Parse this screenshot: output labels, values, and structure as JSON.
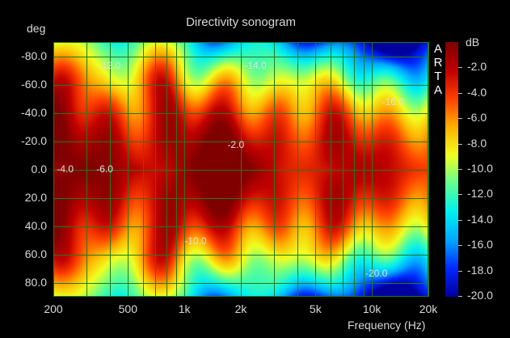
{
  "chart_data": {
    "type": "heatmap",
    "title": "Directivity sonogram",
    "xlabel": "Frequency (Hz)",
    "ylabel": "deg",
    "x_scale": "log",
    "xlim": [
      200,
      20000
    ],
    "ylim": [
      -90,
      90
    ],
    "y_inverted": true,
    "x_ticks": [
      {
        "value": 200,
        "label": "200"
      },
      {
        "value": 500,
        "label": "500"
      },
      {
        "value": 1000,
        "label": "1k"
      },
      {
        "value": 2000,
        "label": "2k"
      },
      {
        "value": 5000,
        "label": "5k"
      },
      {
        "value": 10000,
        "label": "10k"
      },
      {
        "value": 20000,
        "label": "20k"
      }
    ],
    "y_ticks": [
      {
        "value": -80,
        "label": "-80.0"
      },
      {
        "value": -60,
        "label": "-60.0"
      },
      {
        "value": -40,
        "label": "-40.0"
      },
      {
        "value": -20,
        "label": "-20.0"
      },
      {
        "value": 0,
        "label": "0.0"
      },
      {
        "value": 20,
        "label": "20.0"
      },
      {
        "value": 40,
        "label": "40.0"
      },
      {
        "value": 60,
        "label": "60.0"
      },
      {
        "value": 80,
        "label": "80.0"
      }
    ],
    "colorbar": {
      "label": "dB",
      "range": [
        -20,
        0
      ],
      "ticks": [
        {
          "value": -2,
          "label": "-2.0"
        },
        {
          "value": -4,
          "label": "-4.0"
        },
        {
          "value": -6,
          "label": "-6.0"
        },
        {
          "value": -8,
          "label": "-8.0"
        },
        {
          "value": -10,
          "label": "-10.0"
        },
        {
          "value": -12,
          "label": "-12.0"
        },
        {
          "value": -14,
          "label": "-14.0"
        },
        {
          "value": -16,
          "label": "-16.0"
        },
        {
          "value": -18,
          "label": "-18.0"
        },
        {
          "value": -20,
          "label": "-20.0"
        }
      ],
      "colors": [
        "#0000a0",
        "#0028ff",
        "#00a8ff",
        "#00f0f0",
        "#60ff90",
        "#f0ff20",
        "#ffb000",
        "#ff4000",
        "#c00000",
        "#800000"
      ]
    },
    "contour_labels": [
      {
        "text": "-12.0",
        "freq": 400,
        "deg": -73
      },
      {
        "text": "-14.0",
        "freq": 2400,
        "deg": -73
      },
      {
        "text": "-16.0",
        "freq": 13000,
        "deg": -47
      },
      {
        "text": "-2.0",
        "freq": 1950,
        "deg": -17
      },
      {
        "text": "-4.0",
        "freq": 240,
        "deg": 0
      },
      {
        "text": "-6.0",
        "freq": 390,
        "deg": 0
      },
      {
        "text": "-10.0",
        "freq": 1150,
        "deg": 51
      },
      {
        "text": "-20.0",
        "freq": 10600,
        "deg": 74
      }
    ],
    "gridlines_x": [
      200,
      300,
      400,
      500,
      600,
      700,
      800,
      900,
      1000,
      2000,
      3000,
      4000,
      5000,
      6000,
      7000,
      8000,
      9000,
      10000,
      20000
    ],
    "gridlines_y": [
      -80,
      -60,
      -40,
      -20,
      0,
      20,
      40,
      60,
      80
    ],
    "grid": true,
    "watermark": "ARTA"
  }
}
